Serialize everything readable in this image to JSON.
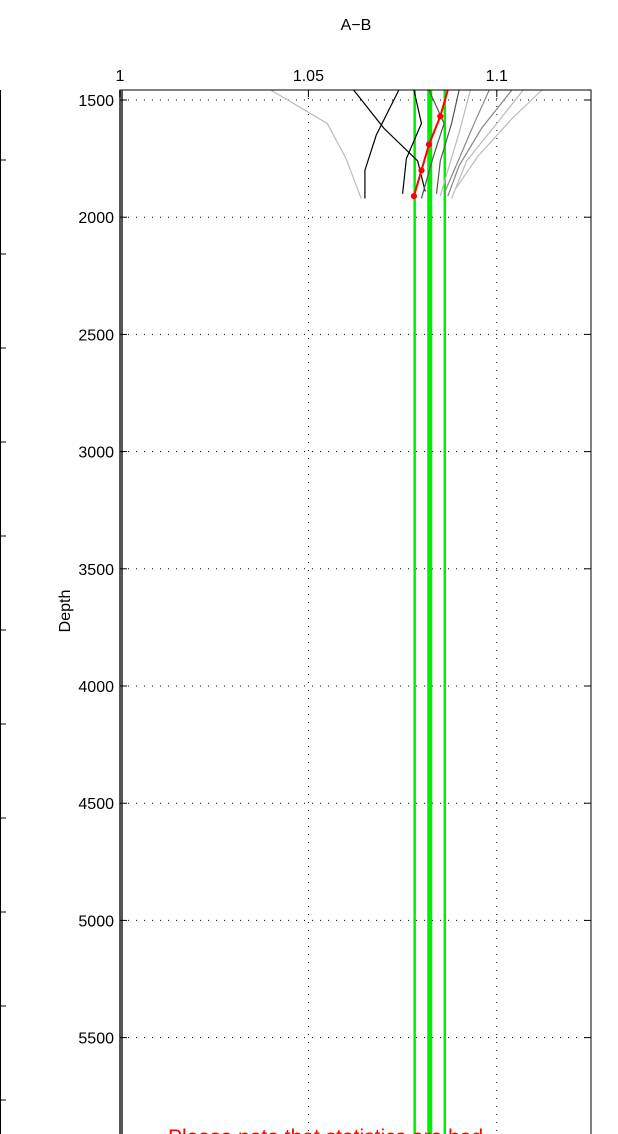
{
  "chart_data": {
    "type": "line",
    "title": "A−B",
    "xlabel": "",
    "ylabel": "Depth",
    "xlim": [
      1.0,
      1.125
    ],
    "ylim": [
      1500,
      5800
    ],
    "y_reversed": true,
    "x_axis_position": "top",
    "x_ticks": [
      {
        "value": 1.0,
        "label": "1"
      },
      {
        "value": 1.05,
        "label": "1.05"
      },
      {
        "value": 1.1,
        "label": "1.1"
      }
    ],
    "y_ticks": [
      {
        "value": 1500,
        "label": "1500"
      },
      {
        "value": 2000,
        "label": "2000"
      },
      {
        "value": 2500,
        "label": "2500"
      },
      {
        "value": 3000,
        "label": "3000"
      },
      {
        "value": 3500,
        "label": "3500"
      },
      {
        "value": 4000,
        "label": "4000"
      },
      {
        "value": 4500,
        "label": "4500"
      },
      {
        "value": 5000,
        "label": "5000"
      },
      {
        "value": 5500,
        "label": "5500"
      }
    ],
    "grid": true,
    "grid_style": "dotted",
    "note": "Please note that statistics are bad",
    "colors": {
      "profile_dark": "#000000",
      "profile_mid": "#555555",
      "profile_grey": "#888888",
      "profile_light": "#bbbbbb",
      "mean_profile": "#ff0000",
      "reference_lines": "#00ee00",
      "note": "#ff0000"
    },
    "reference_lines": [
      {
        "name": "lower",
        "x": 1.0782,
        "width": "thin"
      },
      {
        "name": "mean",
        "x": 1.0822,
        "width": "thick"
      },
      {
        "name": "upper",
        "x": 1.0862,
        "width": "thin"
      }
    ],
    "series": [
      {
        "shade": "profile_dark",
        "points": [
          [
            1.062,
            1450
          ],
          [
            1.07,
            1620
          ],
          [
            1.079,
            1760
          ],
          [
            1.081,
            1890
          ]
        ]
      },
      {
        "shade": "profile_dark",
        "points": [
          [
            1.074,
            1450
          ],
          [
            1.068,
            1650
          ],
          [
            1.065,
            1800
          ],
          [
            1.065,
            1920
          ]
        ]
      },
      {
        "shade": "profile_dark",
        "points": [
          [
            1.078,
            1450
          ],
          [
            1.08,
            1600
          ],
          [
            1.076,
            1750
          ],
          [
            1.075,
            1900
          ]
        ]
      },
      {
        "shade": "profile_mid",
        "points": [
          [
            1.082,
            1450
          ],
          [
            1.086,
            1600
          ],
          [
            1.083,
            1750
          ],
          [
            1.08,
            1920
          ]
        ]
      },
      {
        "shade": "profile_mid",
        "points": [
          [
            1.09,
            1450
          ],
          [
            1.088,
            1600
          ],
          [
            1.085,
            1760
          ],
          [
            1.084,
            1900
          ]
        ]
      },
      {
        "shade": "profile_grey",
        "points": [
          [
            1.098,
            1450
          ],
          [
            1.094,
            1600
          ],
          [
            1.09,
            1750
          ],
          [
            1.086,
            1900
          ]
        ]
      },
      {
        "shade": "profile_grey",
        "points": [
          [
            1.104,
            1450
          ],
          [
            1.096,
            1620
          ],
          [
            1.09,
            1780
          ],
          [
            1.087,
            1910
          ]
        ]
      },
      {
        "shade": "profile_light",
        "points": [
          [
            1.04,
            1450
          ],
          [
            1.055,
            1600
          ],
          [
            1.06,
            1750
          ],
          [
            1.064,
            1920
          ]
        ]
      },
      {
        "shade": "profile_light",
        "points": [
          [
            1.107,
            1450
          ],
          [
            1.1,
            1600
          ],
          [
            1.092,
            1760
          ],
          [
            1.088,
            1920
          ]
        ]
      },
      {
        "shade": "profile_light",
        "points": [
          [
            1.112,
            1450
          ],
          [
            1.104,
            1580
          ],
          [
            1.095,
            1740
          ],
          [
            1.089,
            1880
          ]
        ]
      },
      {
        "shade": "profile_light",
        "points": [
          [
            1.093,
            1450
          ],
          [
            1.09,
            1640
          ],
          [
            1.087,
            1800
          ],
          [
            1.085,
            1910
          ]
        ]
      }
    ],
    "mean_profile": [
      [
        1.087,
        1450
      ],
      [
        1.085,
        1570
      ],
      [
        1.082,
        1690
      ],
      [
        1.08,
        1800
      ],
      [
        1.078,
        1910
      ]
    ]
  }
}
